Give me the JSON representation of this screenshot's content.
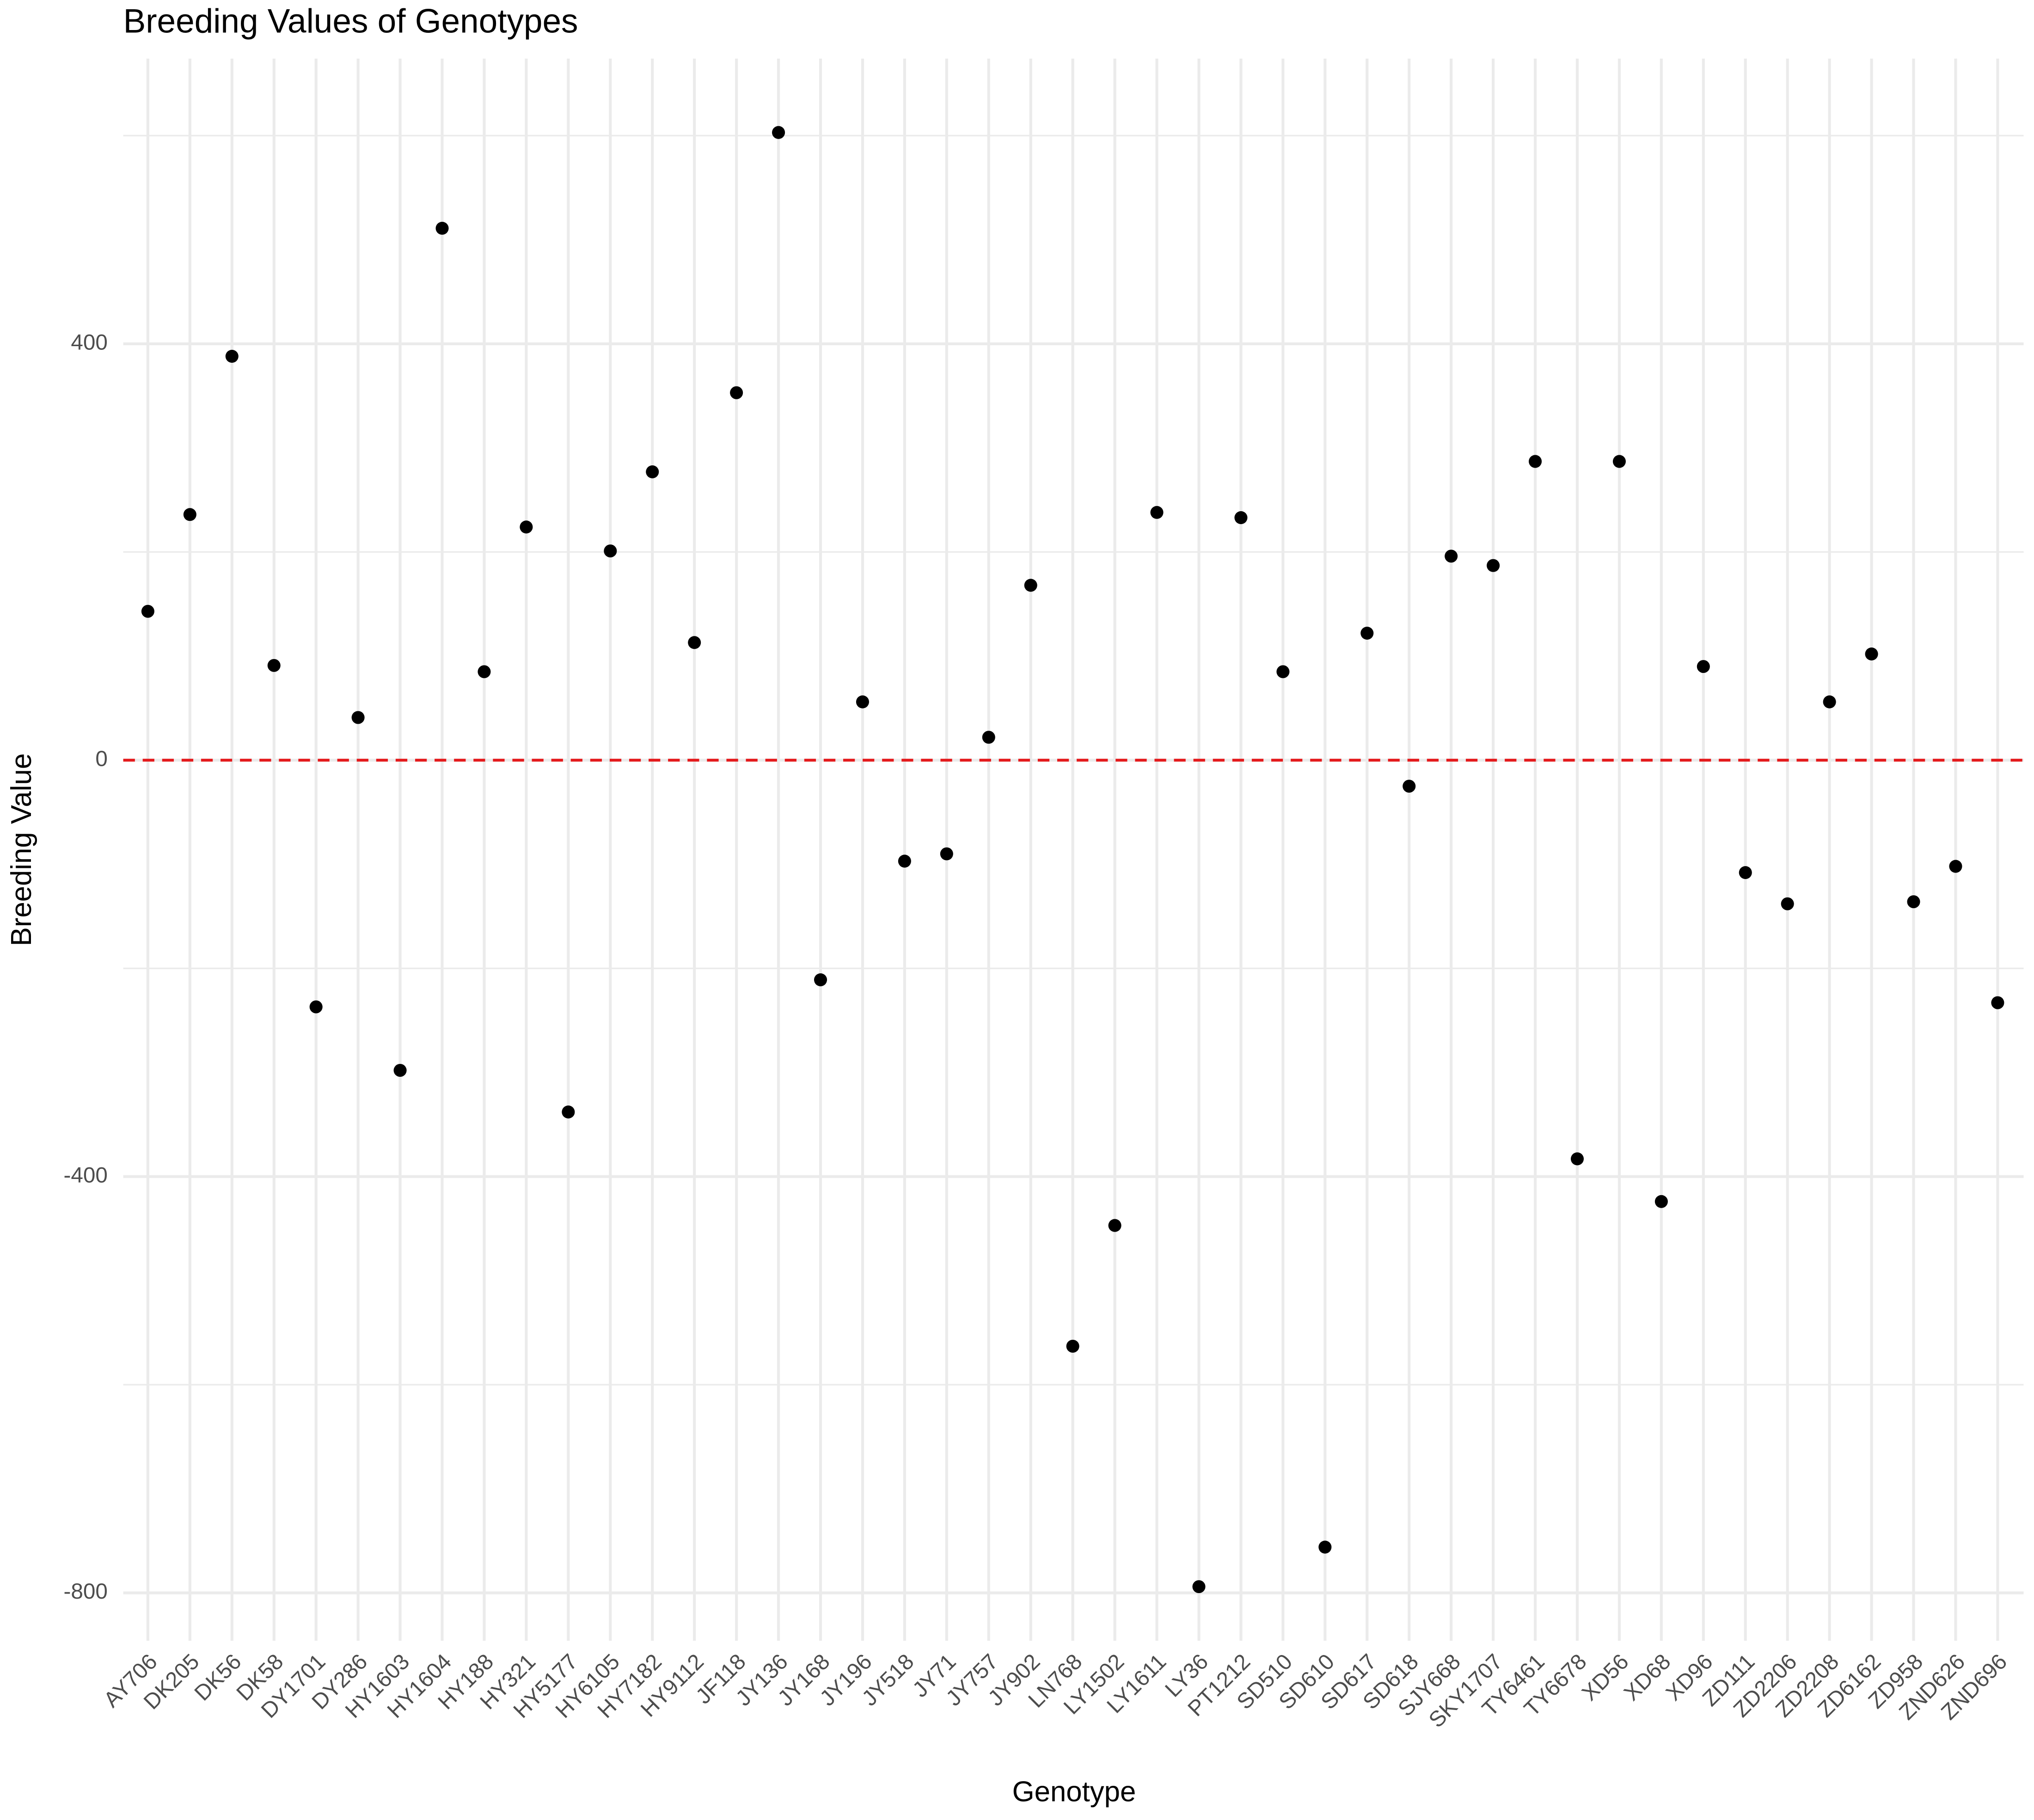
{
  "chart_data": {
    "type": "scatter",
    "title": "Breeding Values of Genotypes",
    "x_label": "Genotype",
    "y_label": "Breeding Value",
    "categories": [
      "AY706",
      "DK205",
      "DK56",
      "DK58",
      "DY1701",
      "DY286",
      "HY1603",
      "HY1604",
      "HY188",
      "HY321",
      "HY5177",
      "HY6105",
      "HY7182",
      "HY9112",
      "JF118",
      "JY136",
      "JY168",
      "JY196",
      "JY518",
      "JY71",
      "JY757",
      "JY902",
      "LN768",
      "LY1502",
      "LY1611",
      "LY36",
      "PT1212",
      "SD510",
      "SD610",
      "SD617",
      "SD618",
      "SJY668",
      "SKY1707",
      "TY6461",
      "TY6678",
      "XD56",
      "XD68",
      "XD96",
      "ZD111",
      "ZD2206",
      "ZD2208",
      "ZD6162",
      "ZD958",
      "ZND626",
      "ZND696"
    ],
    "values": [
      143,
      236,
      388,
      91,
      -237,
      41,
      -298,
      511,
      85,
      224,
      -338,
      201,
      277,
      113,
      353,
      603,
      -211,
      56,
      -97,
      -90,
      22,
      168,
      -563,
      -447,
      238,
      -794,
      233,
      85,
      -756,
      122,
      -25,
      196,
      187,
      287,
      -383,
      287,
      -424,
      90,
      -108,
      -138,
      56,
      102,
      -136,
      -102,
      -233
    ],
    "color": "#000000",
    "ylim": [
      -846,
      674
    ],
    "yticks": [
      -800,
      -400,
      0,
      400
    ],
    "minor_yticks": [
      -600,
      -200,
      200,
      600
    ],
    "grid": true,
    "reference_line": {
      "value": 0,
      "color": "#e41a1c"
    }
  }
}
